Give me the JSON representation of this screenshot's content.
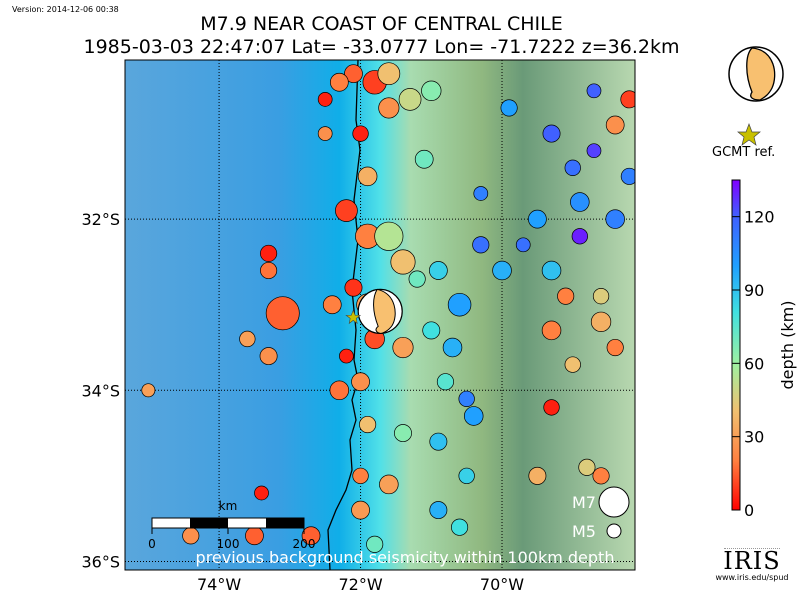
{
  "version": "Version: 2014-12-06 00:38",
  "title": {
    "line1": "M7.9 NEAR COAST OF CENTRAL CHILE",
    "line2": "1985-03-03 22:47:07 Lat= -33.0777 Lon= -71.7222 z=36.2km"
  },
  "mainshock": {
    "lat": -33.0777,
    "lon": -71.7222,
    "depth_km": 36.2,
    "mag": 7.9
  },
  "map": {
    "lon_range": [
      -75.33,
      -68.12
    ],
    "lat_range": [
      -36.1,
      -30.14
    ],
    "lon_ticks": [
      {
        "v": -74,
        "label": "74°W"
      },
      {
        "v": -72,
        "label": "72°W"
      },
      {
        "v": -70,
        "label": "70°W"
      }
    ],
    "lat_ticks": [
      {
        "v": -32,
        "label": "32°S"
      },
      {
        "v": -34,
        "label": "34°S"
      },
      {
        "v": -36,
        "label": "36°S"
      }
    ],
    "caption": "previous background seismicity within 100km depth",
    "scale_bar": {
      "unit": "km",
      "labels": [
        "0",
        "100",
        "200"
      ]
    },
    "legend": [
      {
        "label": "M7",
        "mag": 7
      },
      {
        "label": "M5",
        "mag": 5
      }
    ],
    "events": [
      [
        -72.1,
        -30.3,
        15,
        5.5
      ],
      [
        -71.8,
        -30.4,
        10,
        6.2
      ],
      [
        -71.6,
        -30.7,
        25,
        5.8
      ],
      [
        -72.0,
        -31.0,
        5,
        5.2
      ],
      [
        -71.9,
        -31.5,
        35,
        5.6
      ],
      [
        -72.2,
        -31.9,
        10,
        6.0
      ],
      [
        -71.9,
        -32.2,
        20,
        6.3
      ],
      [
        -71.6,
        -32.2,
        55,
        6.8
      ],
      [
        -71.4,
        -32.5,
        40,
        6.3
      ],
      [
        -72.1,
        -32.8,
        8,
        5.4
      ],
      [
        -71.9,
        -33.0,
        30,
        6.0
      ],
      [
        -73.1,
        -33.1,
        15,
        7.4
      ],
      [
        -72.4,
        -33.0,
        20,
        5.5
      ],
      [
        -71.8,
        -33.4,
        12,
        5.7
      ],
      [
        -71.4,
        -33.5,
        30,
        5.8
      ],
      [
        -72.2,
        -33.6,
        5,
        5.0
      ],
      [
        -72.0,
        -33.9,
        25,
        5.5
      ],
      [
        -72.3,
        -34.0,
        18,
        5.6
      ],
      [
        -71.9,
        -34.4,
        40,
        5.3
      ],
      [
        -71.4,
        -34.5,
        65,
        5.4
      ],
      [
        -72.0,
        -35.0,
        20,
        5.2
      ],
      [
        -71.6,
        -35.1,
        30,
        5.6
      ],
      [
        -72.0,
        -35.4,
        28,
        5.5
      ],
      [
        -71.8,
        -35.8,
        70,
        5.3
      ],
      [
        -73.3,
        -32.4,
        5,
        5.3
      ],
      [
        -73.3,
        -32.6,
        18,
        5.3
      ],
      [
        -73.3,
        -33.6,
        25,
        5.4
      ],
      [
        -73.6,
        -33.4,
        30,
        5.2
      ],
      [
        -73.4,
        -35.2,
        5,
        5.0
      ],
      [
        -73.5,
        -35.7,
        15,
        5.5
      ],
      [
        -72.7,
        -35.7,
        15,
        5.5
      ],
      [
        -74.4,
        -35.7,
        25,
        5.3
      ],
      [
        -75.0,
        -34.0,
        30,
        4.9
      ],
      [
        -72.5,
        -31.0,
        25,
        5.0
      ],
      [
        -72.5,
        -30.6,
        5,
        5.0
      ],
      [
        -72.3,
        -30.4,
        20,
        5.5
      ],
      [
        -71.6,
        -30.3,
        40,
        6.0
      ],
      [
        -71.3,
        -30.6,
        50,
        6.0
      ],
      [
        -71.0,
        -30.5,
        65,
        5.7
      ],
      [
        -71.1,
        -31.3,
        70,
        5.5
      ],
      [
        -71.2,
        -32.7,
        70,
        5.3
      ],
      [
        -70.9,
        -32.6,
        85,
        5.5
      ],
      [
        -70.6,
        -33.0,
        100,
        6.1
      ],
      [
        -71.0,
        -33.3,
        80,
        5.4
      ],
      [
        -70.7,
        -33.5,
        95,
        5.6
      ],
      [
        -70.8,
        -33.9,
        75,
        5.3
      ],
      [
        -70.4,
        -34.3,
        100,
        5.6
      ],
      [
        -70.5,
        -34.1,
        110,
        5.2
      ],
      [
        -70.9,
        -34.6,
        90,
        5.4
      ],
      [
        -70.5,
        -35.0,
        85,
        5.2
      ],
      [
        -70.9,
        -35.4,
        95,
        5.4
      ],
      [
        -70.6,
        -35.6,
        80,
        5.3
      ],
      [
        -70.3,
        -32.3,
        115,
        5.3
      ],
      [
        -70.0,
        -32.6,
        95,
        5.6
      ],
      [
        -70.3,
        -31.7,
        110,
        5.0
      ],
      [
        -69.9,
        -30.7,
        100,
        5.3
      ],
      [
        -69.3,
        -31.0,
        120,
        5.4
      ],
      [
        -69.0,
        -31.4,
        115,
        5.2
      ],
      [
        -68.9,
        -31.8,
        105,
        5.6
      ],
      [
        -68.7,
        -31.2,
        125,
        5.0
      ],
      [
        -68.4,
        -32.0,
        110,
        5.6
      ],
      [
        -68.9,
        -32.2,
        130,
        5.2
      ],
      [
        -69.5,
        -32.0,
        100,
        5.5
      ],
      [
        -69.7,
        -32.3,
        115,
        5.0
      ],
      [
        -69.3,
        -32.6,
        90,
        5.6
      ],
      [
        -68.7,
        -30.5,
        120,
        5.0
      ],
      [
        -68.4,
        -30.9,
        25,
        5.5
      ],
      [
        -69.1,
        -32.9,
        20,
        5.3
      ],
      [
        -68.6,
        -33.2,
        35,
        5.7
      ],
      [
        -68.6,
        -32.9,
        45,
        5.2
      ],
      [
        -68.4,
        -33.5,
        20,
        5.3
      ],
      [
        -69.3,
        -33.3,
        20,
        5.6
      ],
      [
        -69.0,
        -33.7,
        40,
        5.2
      ],
      [
        -69.3,
        -34.2,
        5,
        5.2
      ],
      [
        -68.8,
        -34.9,
        45,
        5.3
      ],
      [
        -68.6,
        -35.0,
        20,
        5.3
      ],
      [
        -69.5,
        -35.0,
        35,
        5.4
      ],
      [
        -68.2,
        -31.5,
        110,
        5.3
      ],
      [
        -68.2,
        -30.6,
        10,
        5.4
      ]
    ]
  },
  "colorbar": {
    "label": "depth (km)",
    "ticks": [
      "0",
      "30",
      "60",
      "90",
      "120"
    ],
    "range": [
      0,
      135
    ]
  },
  "gcmt_label": "GCMT ref.",
  "logo": {
    "word": "IRIS",
    "url": "www.iris.edu/spud"
  },
  "colors": {
    "mainshock_fill": "#f8c070",
    "star": "#c8c000"
  }
}
